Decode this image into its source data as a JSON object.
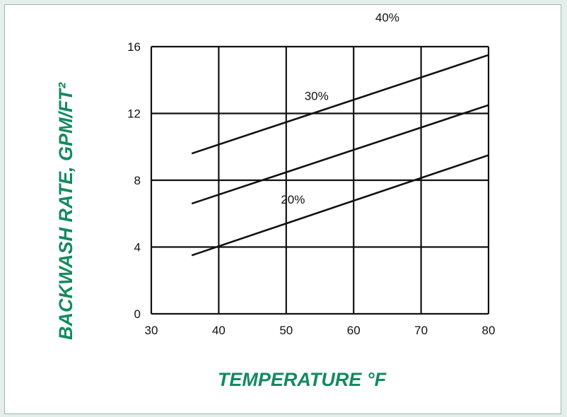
{
  "colors": {
    "axis_title": "#138a5e",
    "line": "#111111",
    "grid": "#111111"
  },
  "chart_data": {
    "type": "line",
    "title": "",
    "xlabel": "TEMPERATURE °F",
    "ylabel": "BACKWASH RATE,  GPM/FT²",
    "xlim": [
      30,
      80
    ],
    "ylim": [
      0,
      16
    ],
    "xticks": [
      30,
      40,
      50,
      60,
      70,
      80
    ],
    "yticks": [
      0,
      4,
      8,
      12,
      16
    ],
    "grid": true,
    "series": [
      {
        "name": "20%",
        "x": [
          36,
          80
        ],
        "y": [
          3.5,
          9.5
        ]
      },
      {
        "name": "30%",
        "x": [
          36,
          80
        ],
        "y": [
          6.6,
          12.5
        ]
      },
      {
        "name": "40%",
        "x": [
          36,
          80
        ],
        "y": [
          9.6,
          15.5
        ]
      }
    ]
  }
}
